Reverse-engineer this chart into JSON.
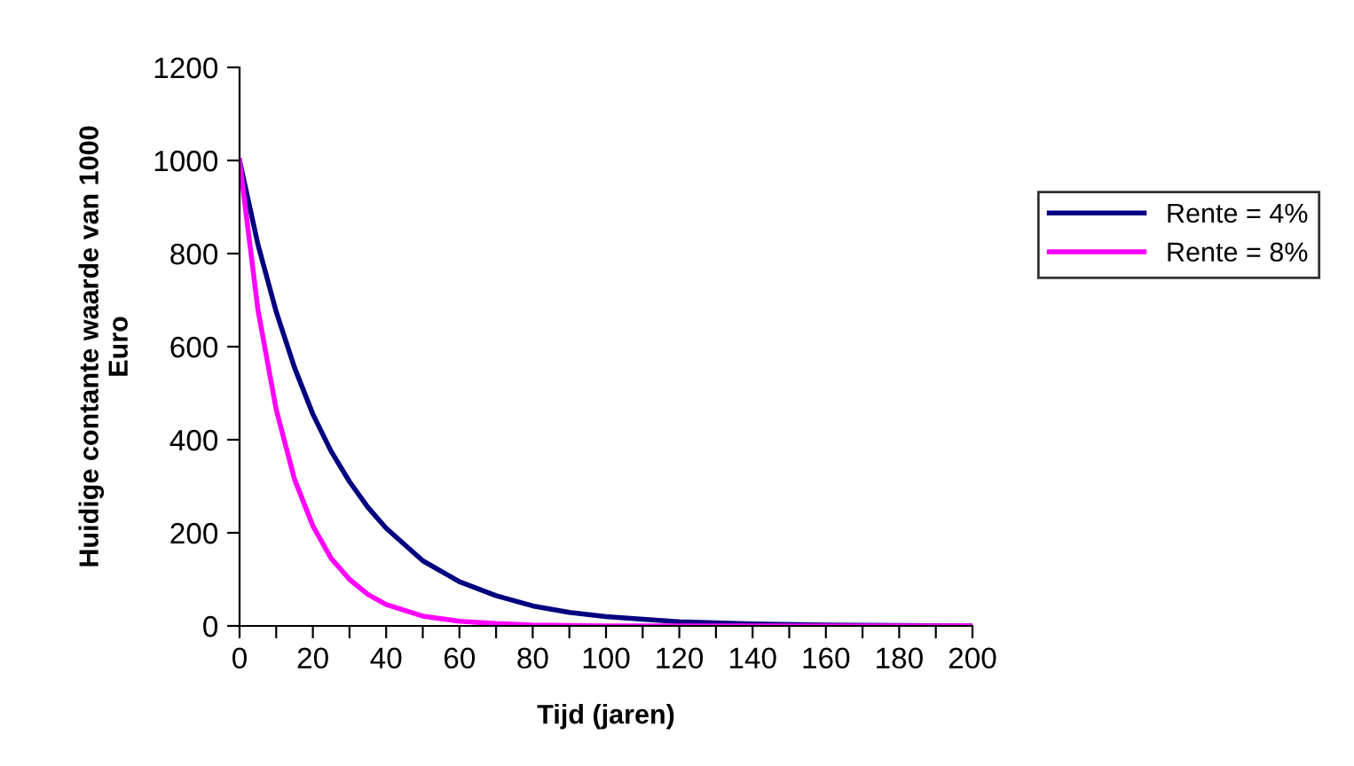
{
  "chart_data": {
    "type": "line",
    "xlabel": "Tijd (jaren)",
    "ylabel": "Huidige contante waarde van 1000\nEuro",
    "x": [
      0,
      5,
      10,
      15,
      20,
      25,
      30,
      35,
      40,
      50,
      60,
      70,
      80,
      90,
      100,
      120,
      140,
      160,
      180,
      200
    ],
    "series": [
      {
        "name": "Rente = 4%",
        "color": "#000080",
        "values": [
          1000,
          820,
          675,
          555,
          455,
          375,
          310,
          255,
          210,
          140,
          95,
          65,
          43,
          29,
          20,
          9,
          4,
          2,
          1,
          0
        ]
      },
      {
        "name": "Rente = 8%",
        "color": "#ff00ff",
        "values": [
          1000,
          680,
          465,
          315,
          215,
          145,
          100,
          68,
          46,
          21,
          10,
          5,
          2,
          1,
          0,
          0,
          0,
          0,
          0,
          0
        ]
      }
    ],
    "xlim": [
      0,
      200
    ],
    "ylim": [
      0,
      1200
    ],
    "xticks": [
      0,
      {
        "value": 10,
        "label": null
      },
      20,
      {
        "value": 30,
        "label": null
      },
      40,
      {
        "value": 50,
        "label": null
      },
      60,
      {
        "value": 70,
        "label": null
      },
      80,
      {
        "value": 90,
        "label": null
      },
      100,
      {
        "value": 110,
        "label": null
      },
      120,
      {
        "value": 130,
        "label": null
      },
      140,
      {
        "value": 150,
        "label": null
      },
      160,
      {
        "value": 170,
        "label": null
      },
      180,
      {
        "value": 190,
        "label": null
      },
      200
    ],
    "yticks": [
      0,
      200,
      400,
      600,
      800,
      1000,
      1200
    ],
    "grid": false,
    "legend": "right",
    "marker": "none",
    "line_style": "solid"
  }
}
